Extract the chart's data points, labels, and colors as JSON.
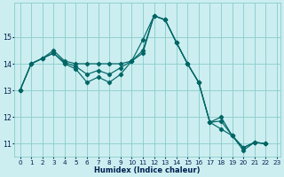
{
  "xlabel": "Humidex (Indice chaleur)",
  "bg_color": "#cceef0",
  "grid_color": "#88cccc",
  "line_color": "#006666",
  "xlim_min": 0,
  "xlim_max": 23,
  "ylim_min": 10.5,
  "ylim_max": 16.3,
  "yticks": [
    11,
    12,
    13,
    14,
    15
  ],
  "xticks": [
    0,
    1,
    2,
    3,
    4,
    5,
    6,
    7,
    8,
    9,
    10,
    11,
    12,
    13,
    14,
    15,
    16,
    17,
    18,
    19,
    20,
    21,
    22,
    23
  ],
  "series": [
    [
      13.0,
      14.0,
      14.2,
      14.5,
      14.1,
      14.0,
      14.0,
      14.0,
      14.0,
      14.0,
      14.1,
      14.5,
      15.8,
      15.65,
      14.8,
      14.0,
      13.3,
      11.8,
      12.0,
      11.3,
      10.75,
      11.05,
      11.0
    ],
    [
      13.0,
      14.0,
      14.2,
      14.4,
      14.05,
      13.9,
      13.6,
      13.75,
      13.6,
      13.85,
      14.1,
      14.9,
      15.8,
      15.65,
      14.8,
      14.0,
      13.3,
      11.8,
      11.85,
      11.3,
      10.85,
      11.05,
      11.0
    ],
    [
      13.0,
      14.0,
      14.2,
      14.4,
      14.0,
      13.8,
      13.3,
      13.5,
      13.3,
      13.6,
      14.1,
      14.4,
      15.8,
      15.65,
      14.8,
      14.0,
      13.3,
      11.8,
      11.55,
      11.3,
      10.85,
      11.05,
      11.0
    ]
  ],
  "marker": "D",
  "marker_size": 2.2,
  "line_width": 0.85,
  "xlabel_fontsize": 6.0,
  "tick_fontsize": 5.2
}
